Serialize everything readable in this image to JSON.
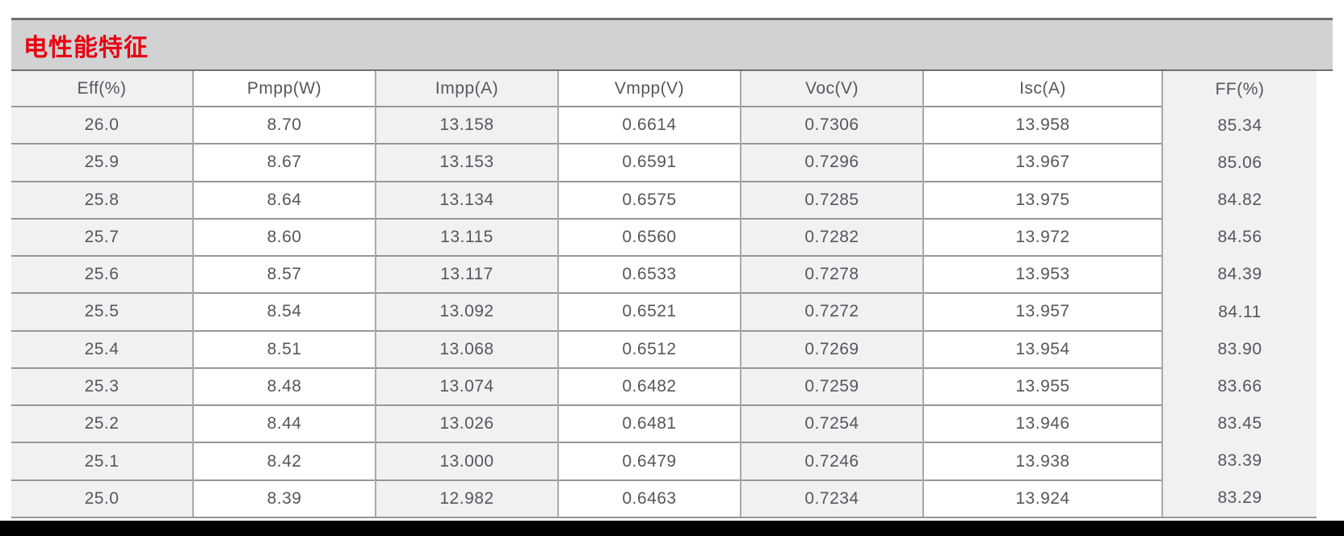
{
  "section": {
    "title": "电性能特征",
    "title_color": "#e8000f",
    "band_bg": "#d1d2d4",
    "band_border_color": "#6e6f71"
  },
  "table": {
    "text_color": "#56575b",
    "row_line_color": "#96979a",
    "column_line_color": "#a7a9ab",
    "shaded_column_bg": "#f0f1f3",
    "plain_column_bg": "#ffffff",
    "columns": [
      {
        "header": "Eff(%)",
        "shaded": true,
        "no_row_lines": false,
        "values": [
          "26.0",
          "25.9",
          "25.8",
          "25.7",
          "25.6",
          "25.5",
          "25.4",
          "25.3",
          "25.2",
          "25.1",
          "25.0"
        ]
      },
      {
        "header": "Pmpp(W)",
        "shaded": false,
        "no_row_lines": false,
        "values": [
          "8.70",
          "8.67",
          "8.64",
          "8.60",
          "8.57",
          "8.54",
          "8.51",
          "8.48",
          "8.44",
          "8.42",
          "8.39"
        ]
      },
      {
        "header": "Impp(A)",
        "shaded": true,
        "no_row_lines": false,
        "values": [
          "13.158",
          "13.153",
          "13.134",
          "13.115",
          "13.117",
          "13.092",
          "13.068",
          "13.074",
          "13.026",
          "13.000",
          "12.982"
        ]
      },
      {
        "header": "Vmpp(V)",
        "shaded": false,
        "no_row_lines": false,
        "values": [
          "0.6614",
          "0.6591",
          "0.6575",
          "0.6560",
          "0.6533",
          "0.6521",
          "0.6512",
          "0.6482",
          "0.6481",
          "0.6479",
          "0.6463"
        ]
      },
      {
        "header": "Voc(V)",
        "shaded": true,
        "no_row_lines": false,
        "values": [
          "0.7306",
          "0.7296",
          "0.7285",
          "0.7282",
          "0.7278",
          "0.7272",
          "0.7269",
          "0.7259",
          "0.7254",
          "0.7246",
          "0.7234"
        ]
      },
      {
        "header": "Isc(A)",
        "shaded": false,
        "no_row_lines": false,
        "values": [
          "13.958",
          "13.967",
          "13.975",
          "13.972",
          "13.953",
          "13.957",
          "13.954",
          "13.955",
          "13.946",
          "13.938",
          "13.924"
        ]
      },
      {
        "header": "FF(%)",
        "shaded": true,
        "no_row_lines": true,
        "values": [
          "85.34",
          "85.06",
          "84.82",
          "84.56",
          "84.39",
          "84.11",
          "83.90",
          "83.66",
          "83.45",
          "83.39",
          "83.29"
        ]
      }
    ]
  },
  "footer": {
    "bar_color": "#000000"
  }
}
